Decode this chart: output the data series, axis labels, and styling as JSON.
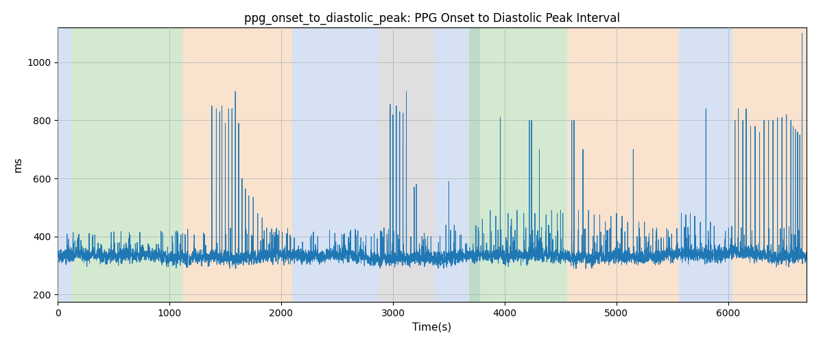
{
  "title": "ppg_onset_to_diastolic_peak: PPG Onset to Diastolic Peak Interval",
  "xlabel": "Time(s)",
  "ylabel": "ms",
  "xlim": [
    0,
    6700
  ],
  "ylim": [
    175,
    1120
  ],
  "yticks": [
    200,
    400,
    600,
    800,
    1000
  ],
  "xticks": [
    0,
    1000,
    2000,
    3000,
    4000,
    5000,
    6000
  ],
  "line_color": "#1f77b4",
  "line_width": 0.7,
  "background_color": "#ffffff",
  "grid_color": "#b0b0b0",
  "bands": [
    {
      "xmin": 0,
      "xmax": 130,
      "color": "#aec6e8",
      "alpha": 0.5
    },
    {
      "xmin": 130,
      "xmax": 1120,
      "color": "#a8d5a2",
      "alpha": 0.5
    },
    {
      "xmin": 1120,
      "xmax": 2100,
      "color": "#f5c8a0",
      "alpha": 0.5
    },
    {
      "xmin": 2100,
      "xmax": 2870,
      "color": "#aec6e8",
      "alpha": 0.5
    },
    {
      "xmin": 2870,
      "xmax": 3370,
      "color": "#f5c8a0",
      "alpha": 0.35
    },
    {
      "xmin": 2870,
      "xmax": 3370,
      "color": "#aec6e8",
      "alpha": 0.35
    },
    {
      "xmin": 3370,
      "xmax": 3780,
      "color": "#aec6e8",
      "alpha": 0.5
    },
    {
      "xmin": 3680,
      "xmax": 4560,
      "color": "#a8d5a2",
      "alpha": 0.5
    },
    {
      "xmin": 4560,
      "xmax": 5560,
      "color": "#f5c8a0",
      "alpha": 0.5
    },
    {
      "xmin": 5560,
      "xmax": 6040,
      "color": "#aec6e8",
      "alpha": 0.5
    },
    {
      "xmin": 6040,
      "xmax": 6700,
      "color": "#f5c8a0",
      "alpha": 0.5
    }
  ],
  "seed": 42,
  "n_points": 6700,
  "base_value": 330,
  "noise_std": 12
}
